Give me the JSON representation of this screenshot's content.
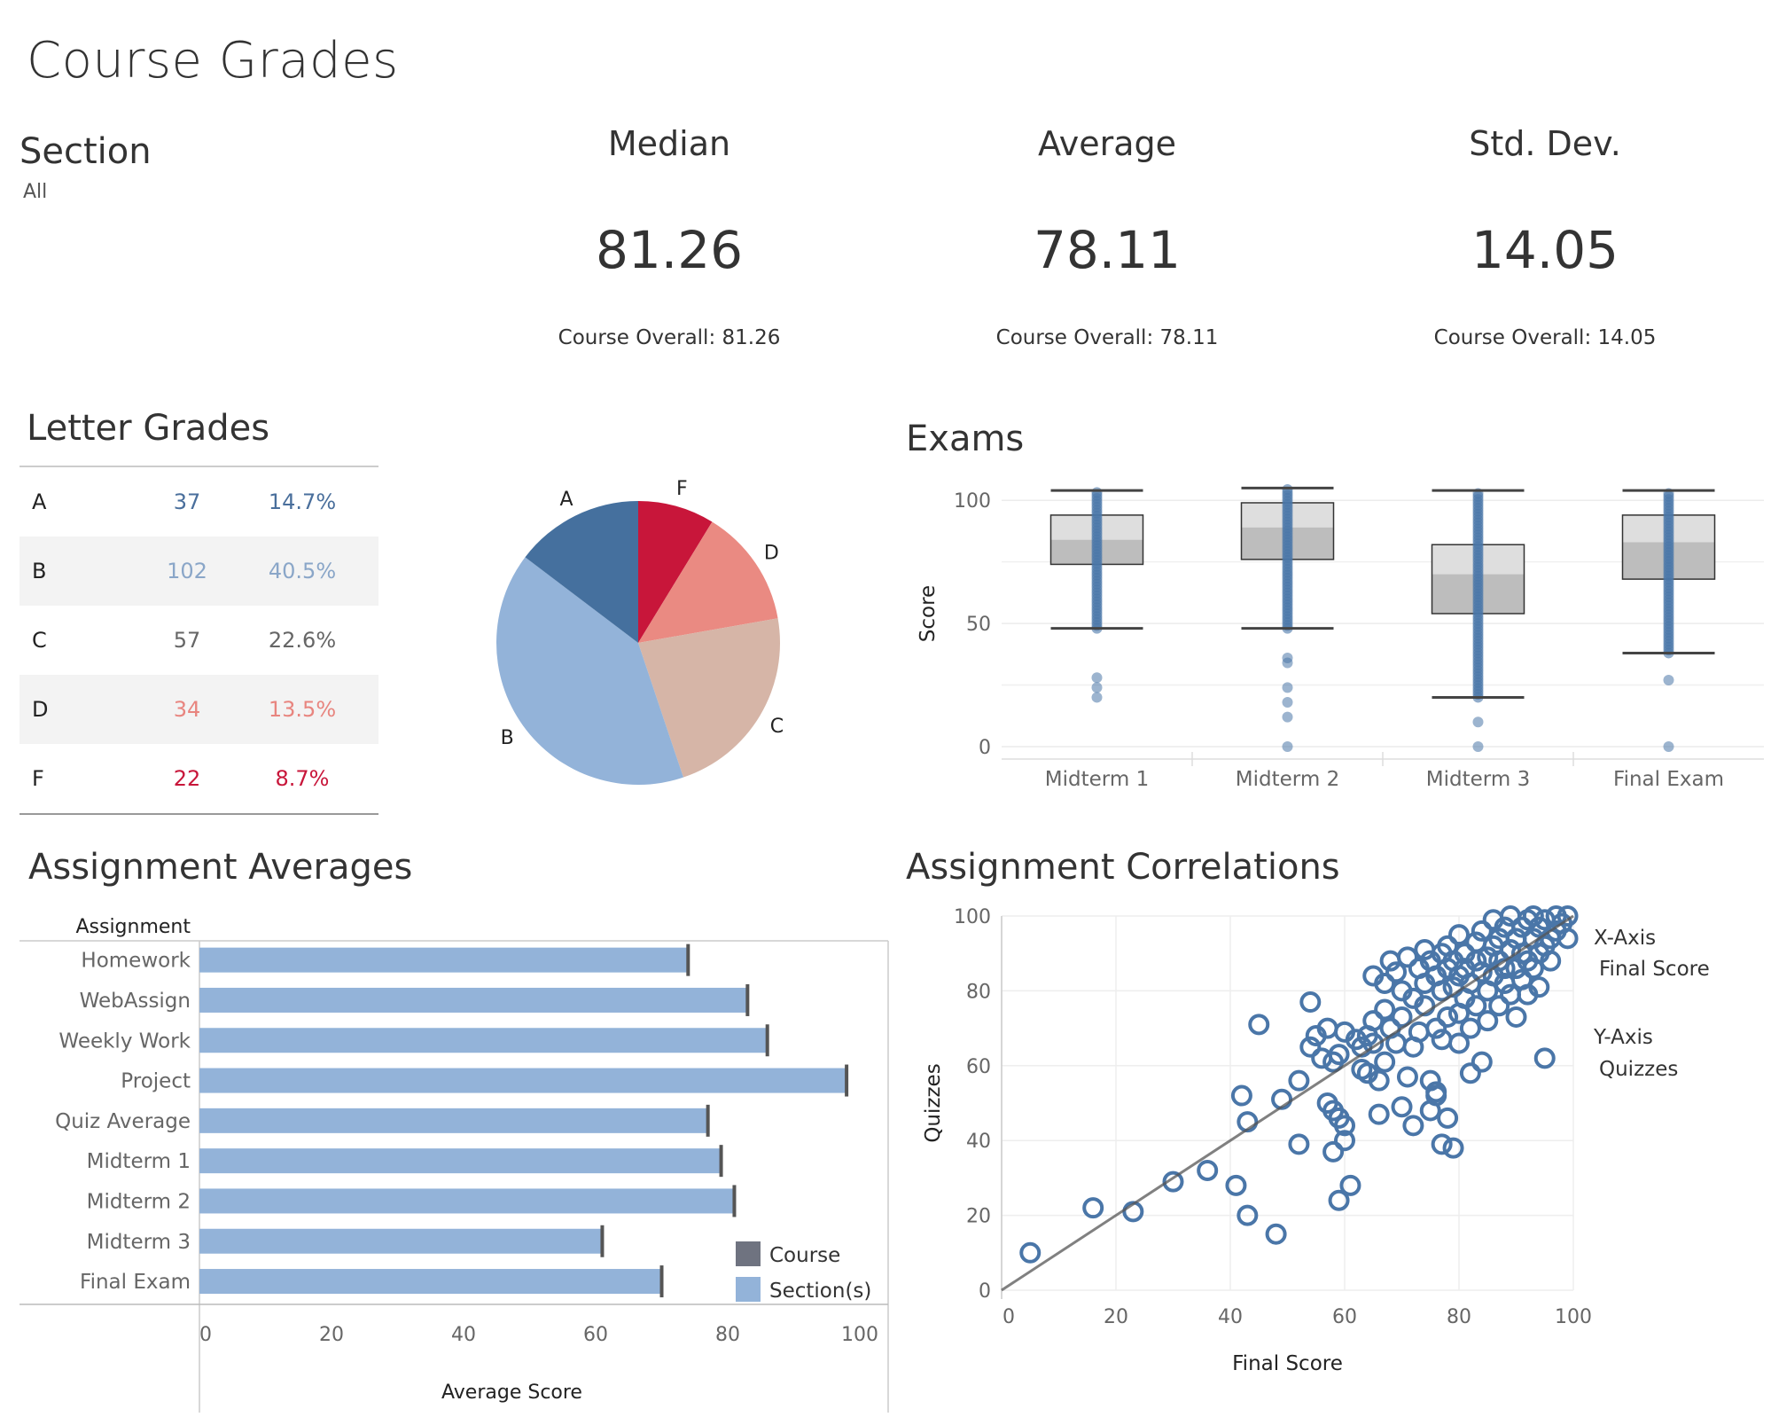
{
  "page": {
    "title": "Course Grades"
  },
  "filter": {
    "label": "Section",
    "value": "All"
  },
  "kpis": [
    {
      "label": "Median",
      "value": "81.26",
      "sub": "Course Overall: 81.26"
    },
    {
      "label": "Average",
      "value": "78.11",
      "sub": "Course Overall: 78.11"
    },
    {
      "label": "Std. Dev.",
      "value": "14.05",
      "sub": "Course Overall: 14.05"
    }
  ],
  "letter_grades": {
    "title": "Letter Grades",
    "rows": [
      {
        "grade": "A",
        "count": "37",
        "pct": "14.7%",
        "color": "#4a6f9c"
      },
      {
        "grade": "B",
        "count": "102",
        "pct": "40.5%",
        "color": "#8aa6c8"
      },
      {
        "grade": "C",
        "count": "57",
        "pct": "22.6%",
        "color": "#666666"
      },
      {
        "grade": "D",
        "count": "34",
        "pct": "13.5%",
        "color": "#e8857f"
      },
      {
        "grade": "F",
        "count": "22",
        "pct": "8.7%",
        "color": "#c8163a"
      }
    ]
  },
  "exams": {
    "title": "Exams",
    "ylabel": "Score",
    "categories": [
      "Midterm 1",
      "Midterm 2",
      "Midterm 3",
      "Final Exam"
    ]
  },
  "assignment_averages": {
    "title": "Assignment Averages",
    "row_header": "Assignment",
    "xlabel": "Average Score",
    "legend": [
      {
        "label": "Course",
        "color": "#6f7380"
      },
      {
        "label": "Section(s)",
        "color": "#93b3d9"
      }
    ]
  },
  "assignment_correlations": {
    "title": "Assignment Correlations",
    "xlabel": "Final Score",
    "ylabel": "Quizzes",
    "x_axis_label": "X-Axis",
    "x_axis_value": "Final Score",
    "y_axis_label": "Y-Axis",
    "y_axis_value": "Quizzes"
  },
  "chart_data": [
    {
      "type": "pie",
      "categories": [
        "A",
        "F",
        "D",
        "C",
        "B"
      ],
      "values": [
        37,
        22,
        34,
        57,
        102
      ],
      "colors": [
        "#45709e",
        "#c8163a",
        "#ea8a82",
        "#d6b5a7",
        "#93b3d9"
      ]
    },
    {
      "type": "box",
      "ylabel": "Score",
      "ylim": [
        0,
        105
      ],
      "yticks": [
        0,
        50,
        100
      ],
      "categories": [
        "Midterm 1",
        "Midterm 2",
        "Midterm 3",
        "Final Exam"
      ],
      "boxes": [
        {
          "lower_whisker": 48,
          "q1": 74,
          "median": 84,
          "q3": 94,
          "upper_whisker": 104,
          "outliers": [
            28,
            24,
            20
          ]
        },
        {
          "lower_whisker": 48,
          "q1": 76,
          "median": 89,
          "q3": 99,
          "upper_whisker": 105,
          "outliers": [
            36,
            34,
            24,
            18,
            12,
            0
          ]
        },
        {
          "lower_whisker": 20,
          "q1": 54,
          "median": 70,
          "q3": 82,
          "upper_whisker": 104,
          "outliers": [
            10,
            0
          ]
        },
        {
          "lower_whisker": 38,
          "q1": 68,
          "median": 83,
          "q3": 94,
          "upper_whisker": 104,
          "outliers": [
            27,
            0
          ]
        }
      ]
    },
    {
      "type": "bar",
      "categories": [
        "Homework",
        "WebAssign",
        "Weekly Work",
        "Project",
        "Quiz Average",
        "Midterm 1",
        "Midterm 2",
        "Midterm 3",
        "Final Exam"
      ],
      "series": [
        {
          "name": "Section(s)",
          "values": [
            74,
            83,
            86,
            98,
            77,
            79,
            81,
            61,
            70
          ]
        },
        {
          "name": "Course",
          "values": [
            74,
            83,
            86,
            98,
            77,
            79,
            81,
            61,
            70
          ]
        }
      ],
      "xlabel": "Average Score",
      "xlim": [
        0,
        100
      ],
      "xticks": [
        0,
        20,
        40,
        60,
        80,
        100
      ]
    },
    {
      "type": "scatter",
      "xlabel": "Final Score",
      "ylabel": "Quizzes",
      "xlim": [
        0,
        100
      ],
      "ylim": [
        0,
        100
      ],
      "xticks": [
        0,
        20,
        40,
        60,
        80,
        100
      ],
      "yticks": [
        0,
        20,
        40,
        60,
        80,
        100
      ],
      "trend": {
        "x": [
          0,
          100
        ],
        "y": [
          0,
          100
        ]
      },
      "points": [
        [
          5,
          10
        ],
        [
          16,
          22
        ],
        [
          23,
          21
        ],
        [
          30,
          29
        ],
        [
          36,
          32
        ],
        [
          41,
          28
        ],
        [
          42,
          52
        ],
        [
          43,
          45
        ],
        [
          43,
          20
        ],
        [
          45,
          71
        ],
        [
          48,
          15
        ],
        [
          49,
          51
        ],
        [
          52,
          39
        ],
        [
          52,
          56
        ],
        [
          54,
          77
        ],
        [
          54,
          65
        ],
        [
          55,
          68
        ],
        [
          56,
          62
        ],
        [
          57,
          50
        ],
        [
          57,
          70
        ],
        [
          58,
          61
        ],
        [
          58,
          48
        ],
        [
          58,
          37
        ],
        [
          59,
          46
        ],
        [
          59,
          24
        ],
        [
          59,
          63
        ],
        [
          60,
          44
        ],
        [
          60,
          69
        ],
        [
          60,
          40
        ],
        [
          61,
          28
        ],
        [
          62,
          67
        ],
        [
          63,
          65
        ],
        [
          63,
          59
        ],
        [
          64,
          58
        ],
        [
          64,
          68
        ],
        [
          65,
          66
        ],
        [
          65,
          72
        ],
        [
          65,
          84
        ],
        [
          66,
          47
        ],
        [
          66,
          56
        ],
        [
          67,
          75
        ],
        [
          67,
          61
        ],
        [
          67,
          82
        ],
        [
          68,
          88
        ],
        [
          68,
          70
        ],
        [
          69,
          85
        ],
        [
          69,
          66
        ],
        [
          70,
          73
        ],
        [
          70,
          80
        ],
        [
          70,
          49
        ],
        [
          71,
          57
        ],
        [
          71,
          89
        ],
        [
          72,
          44
        ],
        [
          72,
          78
        ],
        [
          72,
          65
        ],
        [
          73,
          86
        ],
        [
          73,
          69
        ],
        [
          74,
          82
        ],
        [
          74,
          76
        ],
        [
          74,
          91
        ],
        [
          75,
          56
        ],
        [
          75,
          88
        ],
        [
          75,
          48
        ],
        [
          76,
          52
        ],
        [
          76,
          70
        ],
        [
          76,
          84
        ],
        [
          76,
          53
        ],
        [
          77,
          80
        ],
        [
          77,
          90
        ],
        [
          77,
          67
        ],
        [
          77,
          39
        ],
        [
          78,
          73
        ],
        [
          78,
          86
        ],
        [
          78,
          46
        ],
        [
          78,
          92
        ],
        [
          79,
          81
        ],
        [
          79,
          88
        ],
        [
          79,
          38
        ],
        [
          80,
          74
        ],
        [
          80,
          84
        ],
        [
          80,
          66
        ],
        [
          80,
          95
        ],
        [
          81,
          78
        ],
        [
          81,
          86
        ],
        [
          81,
          90
        ],
        [
          82,
          70
        ],
        [
          82,
          82
        ],
        [
          82,
          58
        ],
        [
          83,
          88
        ],
        [
          83,
          76
        ],
        [
          83,
          93
        ],
        [
          84,
          61
        ],
        [
          84,
          85
        ],
        [
          84,
          96
        ],
        [
          85,
          80
        ],
        [
          85,
          89
        ],
        [
          85,
          72
        ],
        [
          86,
          92
        ],
        [
          86,
          84
        ],
        [
          86,
          99
        ],
        [
          87,
          76
        ],
        [
          87,
          88
        ],
        [
          87,
          94
        ],
        [
          88,
          86
        ],
        [
          88,
          97
        ],
        [
          88,
          82
        ],
        [
          89,
          91
        ],
        [
          89,
          79
        ],
        [
          89,
          100
        ],
        [
          90,
          86
        ],
        [
          90,
          94
        ],
        [
          90,
          73
        ],
        [
          91,
          90
        ],
        [
          91,
          97
        ],
        [
          91,
          83
        ],
        [
          92,
          99
        ],
        [
          92,
          88
        ],
        [
          92,
          79
        ],
        [
          93,
          94
        ],
        [
          93,
          86
        ],
        [
          93,
          100
        ],
        [
          94,
          97
        ],
        [
          94,
          90
        ],
        [
          94,
          81
        ],
        [
          95,
          62
        ],
        [
          95,
          99
        ],
        [
          95,
          92
        ],
        [
          96,
          94
        ],
        [
          96,
          88
        ],
        [
          97,
          100
        ],
        [
          97,
          96
        ],
        [
          98,
          98
        ],
        [
          99,
          94
        ],
        [
          99,
          100
        ]
      ]
    }
  ]
}
